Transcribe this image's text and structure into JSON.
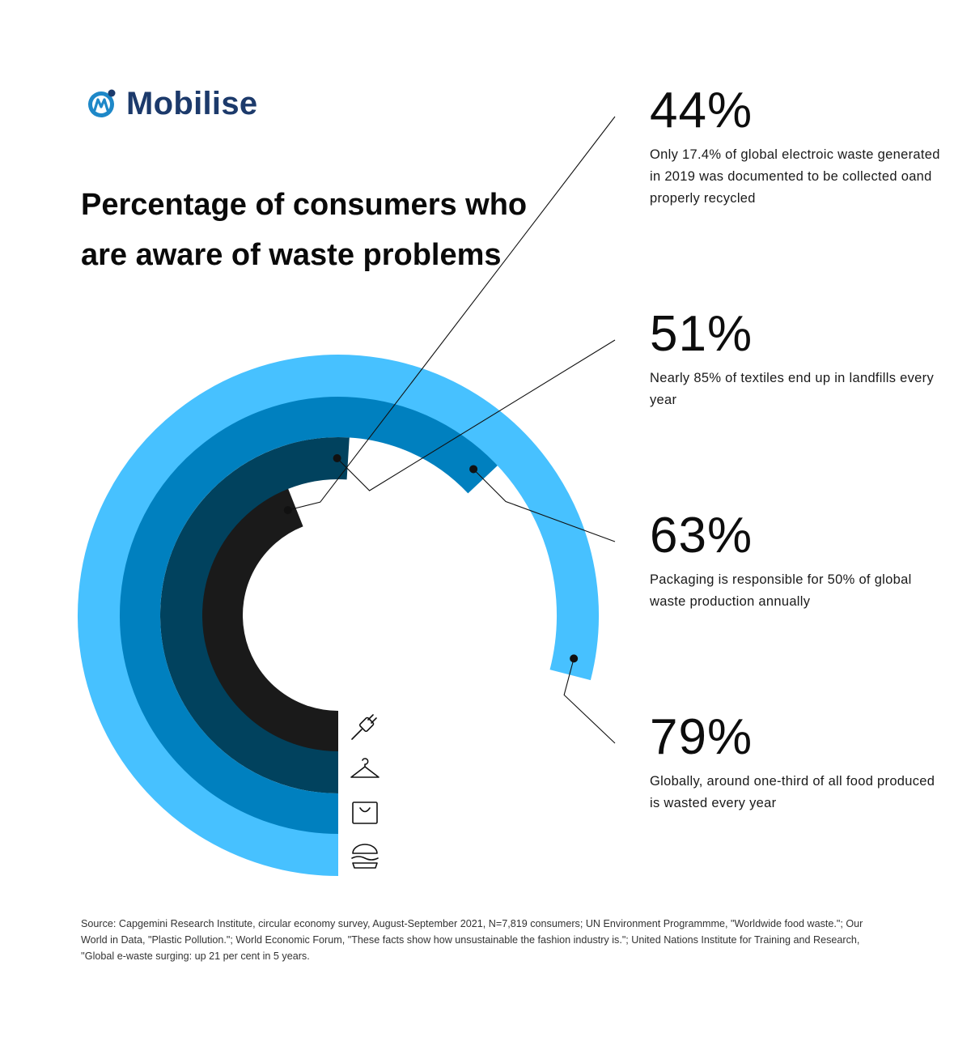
{
  "brand": {
    "name": "Mobilise",
    "logo_icon": "mobilise-logo-icon",
    "colors": {
      "text": "#1c3a6b",
      "accent": "#1e88c8"
    }
  },
  "chart_data": {
    "type": "radial-bar",
    "title": "Percentage of consumers who are aware of waste problems",
    "max": 100,
    "series": [
      {
        "name": "E-waste",
        "value": 44,
        "label": "44%",
        "icon": "plug-icon",
        "color": "#1a1a1a",
        "description": "Only 17.4% of global electroic waste generated in 2019 was documented to be collected oand properly recycled"
      },
      {
        "name": "Textiles",
        "value": 51,
        "label": "51%",
        "icon": "hanger-icon",
        "color": "#01425e",
        "description": "Nearly 85% of textiles end up in landfills every year"
      },
      {
        "name": "Packaging",
        "value": 63,
        "label": "63%",
        "icon": "shopping-bag-icon",
        "color": "#0080bf",
        "description": "Packaging is responsible for 50% of global waste production annually"
      },
      {
        "name": "Food",
        "value": 79,
        "label": "79%",
        "icon": "burger-icon",
        "color": "#47c1ff",
        "description": "Globally, around one-third of all food produced is wasted every year"
      }
    ]
  },
  "source": "Source: Capgemini Research Institute, circular economy survey, August-September 2021, N=7,819 consumers; UN Environment Programmme, \"Worldwide food waste.\"; Our World in Data, \"Plastic Pollution.\"; World Economic Forum, \"These facts show how unsustainable the fashion industry is.\"; United Nations Institute for Training and Research, ''Global e-waste surging: up 21 per cent in 5 years."
}
